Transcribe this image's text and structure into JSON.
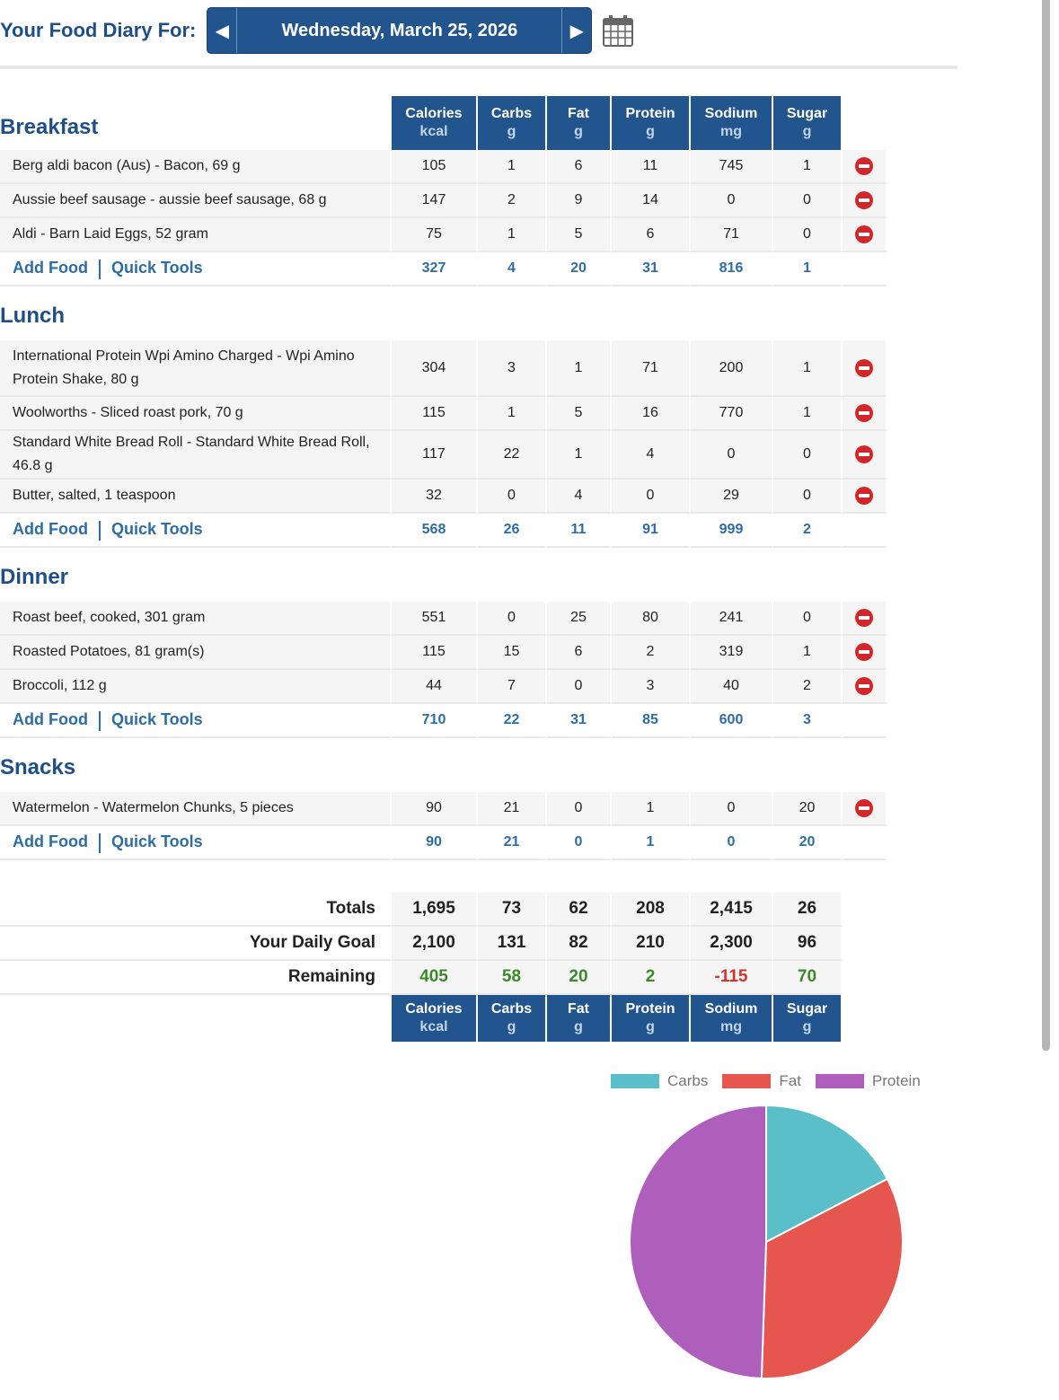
{
  "header": {
    "title": "Your Food Diary For:",
    "date": "Wednesday, March 25, 2026"
  },
  "columns": [
    {
      "name": "Calories",
      "unit": "kcal"
    },
    {
      "name": "Carbs",
      "unit": "g"
    },
    {
      "name": "Fat",
      "unit": "g"
    },
    {
      "name": "Protein",
      "unit": "g"
    },
    {
      "name": "Sodium",
      "unit": "mg"
    },
    {
      "name": "Sugar",
      "unit": "g"
    }
  ],
  "add_food": "Add Food",
  "quick_tools": "Quick Tools",
  "meals": [
    {
      "title": "Breakfast",
      "foods": [
        {
          "name": "Berg aldi bacon (Aus) - Bacon, 69 g",
          "values": [
            "105",
            "1",
            "6",
            "11",
            "745",
            "1"
          ]
        },
        {
          "name": "Aussie beef sausage - aussie beef sausage, 68 g",
          "values": [
            "147",
            "2",
            "9",
            "14",
            "0",
            "0"
          ]
        },
        {
          "name": "Aldi - Barn Laid Eggs, 52 gram",
          "values": [
            "75",
            "1",
            "5",
            "6",
            "71",
            "0"
          ]
        }
      ],
      "totals": [
        "327",
        "4",
        "20",
        "31",
        "816",
        "1"
      ]
    },
    {
      "title": "Lunch",
      "foods": [
        {
          "name": "International Protein Wpi Amino Charged - Wpi Amino Protein Shake, 80 g",
          "values": [
            "304",
            "3",
            "1",
            "71",
            "200",
            "1"
          ]
        },
        {
          "name": "Woolworths - Sliced roast pork, 70 g",
          "values": [
            "115",
            "1",
            "5",
            "16",
            "770",
            "1"
          ]
        },
        {
          "name": "Standard White Bread Roll - Standard White Bread Roll, 46.8 g",
          "values": [
            "117",
            "22",
            "1",
            "4",
            "0",
            "0"
          ]
        },
        {
          "name": "Butter, salted, 1 teaspoon",
          "values": [
            "32",
            "0",
            "4",
            "0",
            "29",
            "0"
          ]
        }
      ],
      "totals": [
        "568",
        "26",
        "11",
        "91",
        "999",
        "2"
      ]
    },
    {
      "title": "Dinner",
      "foods": [
        {
          "name": "Roast beef, cooked, 301 gram",
          "values": [
            "551",
            "0",
            "25",
            "80",
            "241",
            "0"
          ]
        },
        {
          "name": "Roasted Potatoes, 81 gram(s)",
          "values": [
            "115",
            "15",
            "6",
            "2",
            "319",
            "1"
          ]
        },
        {
          "name": "Broccoli, 112 g",
          "values": [
            "44",
            "7",
            "0",
            "3",
            "40",
            "2"
          ]
        }
      ],
      "totals": [
        "710",
        "22",
        "31",
        "85",
        "600",
        "3"
      ]
    },
    {
      "title": "Snacks",
      "foods": [
        {
          "name": "Watermelon - Watermelon Chunks, 5 pieces",
          "values": [
            "90",
            "21",
            "0",
            "1",
            "0",
            "20"
          ]
        }
      ],
      "totals": [
        "90",
        "21",
        "0",
        "1",
        "0",
        "20"
      ]
    }
  ],
  "summary": {
    "totals": {
      "label": "Totals",
      "values": [
        "1,695",
        "73",
        "62",
        "208",
        "2,415",
        "26"
      ]
    },
    "goal": {
      "label": "Your Daily Goal",
      "values": [
        "2,100",
        "131",
        "82",
        "210",
        "2,300",
        "96"
      ]
    },
    "remaining": {
      "label": "Remaining",
      "values": [
        "405",
        "58",
        "20",
        "2",
        "-115",
        "70"
      ]
    }
  },
  "colors": {
    "brand": "#22548d",
    "positive": "#3a8a2a",
    "negative": "#d8302b"
  },
  "chart_data": {
    "type": "pie",
    "title": "",
    "legend_position": "top-right",
    "labels": [
      "Carbs",
      "Fat",
      "Protein"
    ],
    "values": [
      292,
      558,
      832
    ],
    "unit": "kcal",
    "colors": [
      "#5bbfc9",
      "#e5564f",
      "#ae5fbc"
    ]
  }
}
